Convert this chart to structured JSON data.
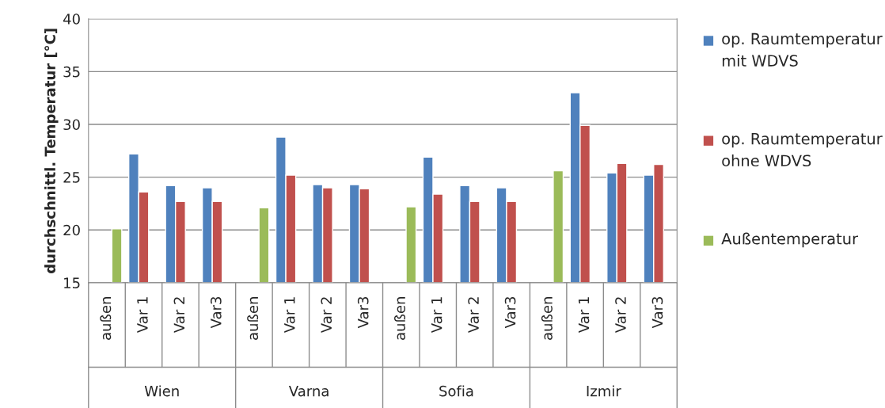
{
  "chart_data": {
    "type": "bar",
    "ylabel": "durchschnittl. Temperatur [°C]",
    "categories": [
      "außen",
      "Var 1",
      "Var 2",
      "Var3",
      "außen",
      "Var 1",
      "Var 2",
      "Var3",
      "außen",
      "Var 1",
      "Var 2",
      "Var3",
      "außen",
      "Var 1",
      "Var 2",
      "Var3"
    ],
    "series": [
      {
        "name": "op. Raumtemperatur mit WDVS",
        "color": "#4f81bd",
        "values": [
          null,
          27.2,
          24.2,
          24.0,
          null,
          28.8,
          24.3,
          24.3,
          null,
          26.9,
          24.2,
          24.0,
          null,
          33.0,
          25.4,
          25.2
        ]
      },
      {
        "name": "op. Raumtemperatur ohne WDVS",
        "color": "#c0504d",
        "values": [
          null,
          23.6,
          22.7,
          22.7,
          null,
          25.2,
          24.0,
          23.9,
          null,
          23.4,
          22.7,
          22.7,
          null,
          29.9,
          26.3,
          26.2
        ]
      },
      {
        "name": "Außentemperatur",
        "color": "#9bbb59",
        "values": [
          20.1,
          null,
          null,
          null,
          22.1,
          null,
          null,
          null,
          22.2,
          null,
          null,
          null,
          25.6,
          null,
          null,
          null
        ]
      }
    ],
    "annotations": [
      "Wien",
      "Varna",
      "Sofia",
      "Izmir"
    ],
    "ylim": [
      15,
      40
    ],
    "yticks": [
      15,
      20,
      25,
      30,
      35,
      40
    ],
    "grid": "y",
    "legend": "right"
  }
}
